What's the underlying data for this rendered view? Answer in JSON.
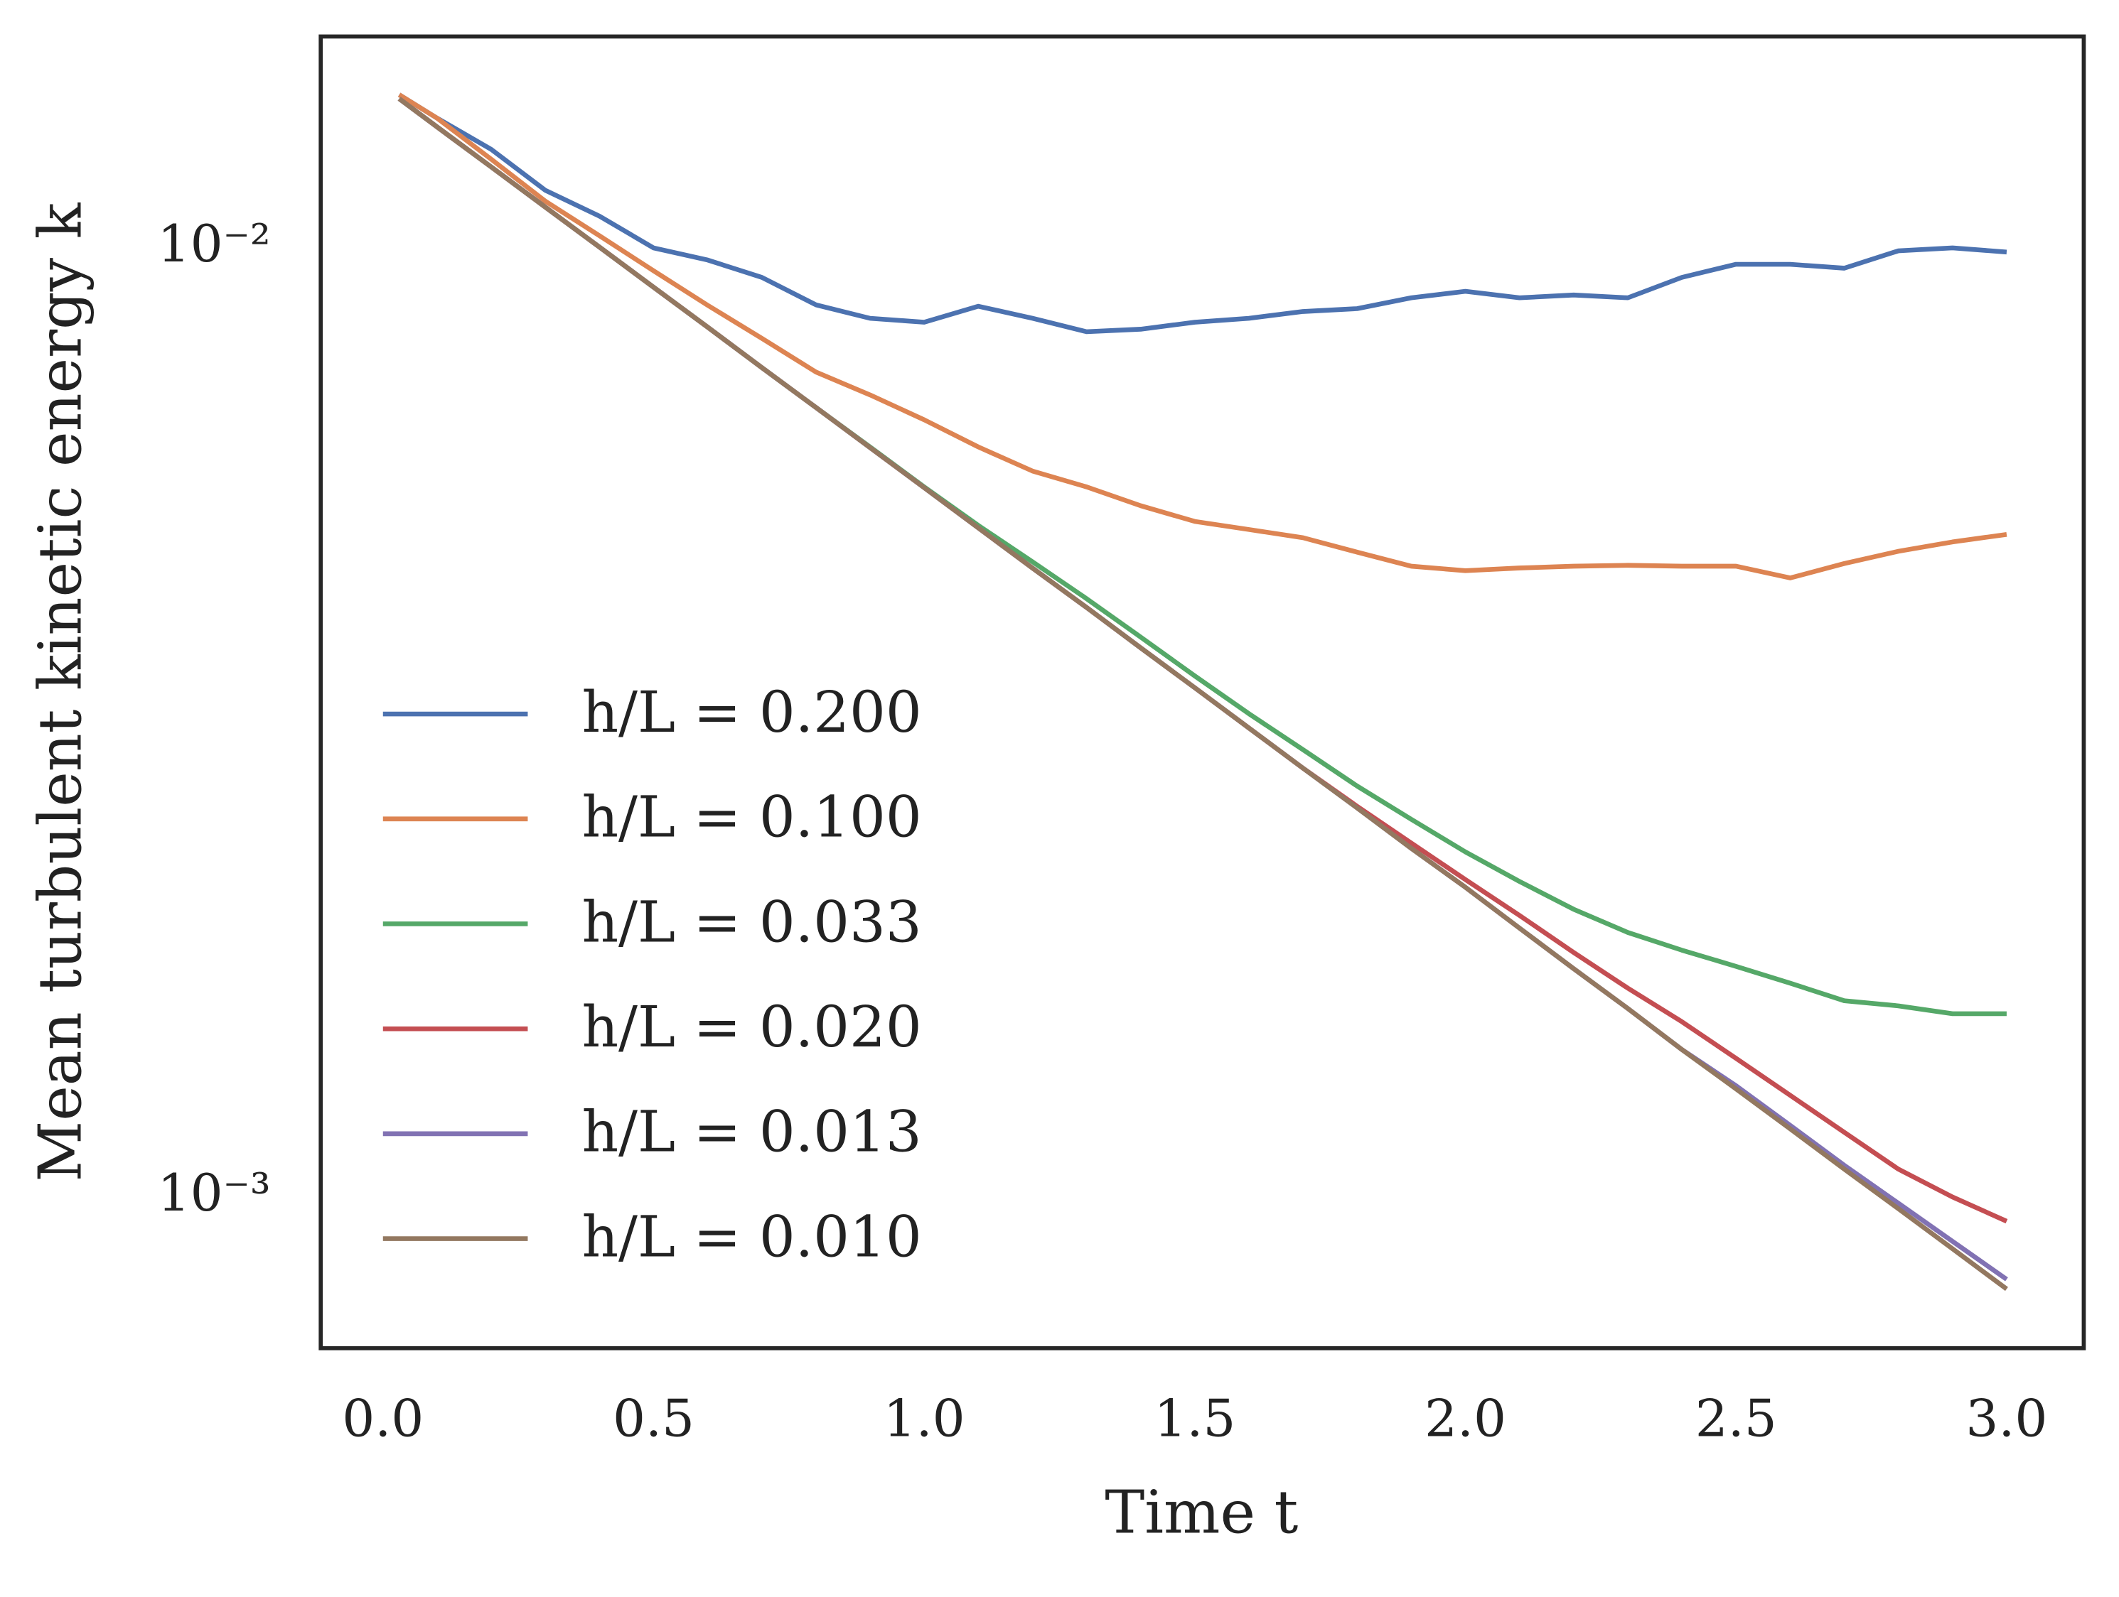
{
  "chart_data": {
    "type": "line",
    "xlabel": "Time t",
    "ylabel": "Mean turbulent kinetic energy k",
    "xlim": [
      -0.115,
      3.1425
    ],
    "ylim": [
      0.000693,
      0.0167
    ],
    "ylog": true,
    "grid": false,
    "legend": "lower left",
    "xticks": [
      {
        "value": 0,
        "label": "0.0"
      },
      0.5,
      {
        "value": 1,
        "label": "1.0"
      },
      1.5,
      {
        "value": 2,
        "label": "2.0"
      },
      2.5,
      {
        "value": 3,
        "label": "3.0"
      }
    ],
    "yticks": [
      {
        "value": 0.01,
        "label": "10⁻²"
      },
      {
        "value": 0.001,
        "label": "10⁻³"
      }
    ],
    "x": [
      0.03,
      0.1,
      0.2,
      0.3,
      0.4,
      0.5,
      0.6,
      0.7,
      0.8,
      0.9,
      1.0,
      1.1,
      1.2,
      1.3,
      1.4,
      1.5,
      1.6,
      1.7,
      1.8,
      1.9,
      2.0,
      2.1,
      2.2,
      2.3,
      2.4,
      2.5,
      2.6,
      2.7,
      2.8,
      2.9,
      3.0
    ],
    "series": [
      {
        "name": "h/L = 0.200",
        "color": "#4c72b0",
        "values": [
          0.0145,
          0.0137,
          0.0127,
          0.0115,
          0.0108,
          0.01,
          0.00971,
          0.00931,
          0.00871,
          0.00843,
          0.00835,
          0.00868,
          0.00843,
          0.00816,
          0.00821,
          0.00835,
          0.00843,
          0.00857,
          0.00863,
          0.00886,
          0.009,
          0.00886,
          0.00892,
          0.00886,
          0.00931,
          0.00961,
          0.00961,
          0.00952,
          0.00993,
          0.01,
          0.0099
        ]
      },
      {
        "name": "h/L = 0.100",
        "color": "#dd8452",
        "values": [
          0.0145,
          0.0137,
          0.0124,
          0.0112,
          0.0103,
          0.00946,
          0.0087,
          0.00803,
          0.0074,
          0.007,
          0.00659,
          0.00617,
          0.00582,
          0.0056,
          0.00535,
          0.00515,
          0.00505,
          0.00495,
          0.00478,
          0.00462,
          0.00457,
          0.0046,
          0.00462,
          0.00463,
          0.00462,
          0.00462,
          0.00449,
          0.00465,
          0.00479,
          0.0049,
          0.00499
        ]
      },
      {
        "name": "h/L = 0.033",
        "color": "#55a868",
        "values": [
          0.01436,
          0.01341,
          0.01217,
          0.01104,
          0.01002,
          0.00909,
          0.00825,
          0.00748,
          0.00679,
          0.00617,
          0.0056,
          0.0051,
          0.00467,
          0.00427,
          0.00389,
          0.00354,
          0.00323,
          0.00296,
          0.00271,
          0.0025,
          0.00231,
          0.00215,
          0.00201,
          0.0019,
          0.00182,
          0.00175,
          0.00168,
          0.00161,
          0.00159,
          0.00156,
          0.00156
        ]
      },
      {
        "name": "h/L = 0.020",
        "color": "#c44e52",
        "values": [
          0.01436,
          0.01341,
          0.01217,
          0.01104,
          0.01002,
          0.00909,
          0.00825,
          0.00748,
          0.00679,
          0.00616,
          0.00559,
          0.00507,
          0.0046,
          0.00418,
          0.00379,
          0.00344,
          0.00312,
          0.00283,
          0.00258,
          0.00236,
          0.00216,
          0.00198,
          0.00181,
          0.00166,
          0.00153,
          0.0014,
          0.00128,
          0.00117,
          0.00107,
          0.001,
          0.000943
        ]
      },
      {
        "name": "h/L = 0.013",
        "color": "#8172b3",
        "values": [
          0.01436,
          0.01341,
          0.01217,
          0.01104,
          0.01002,
          0.00909,
          0.00825,
          0.00748,
          0.00679,
          0.00616,
          0.00559,
          0.00507,
          0.0046,
          0.00418,
          0.00379,
          0.00344,
          0.00312,
          0.00283,
          0.00257,
          0.00233,
          0.00212,
          0.00192,
          0.00174,
          0.00158,
          0.00143,
          0.00131,
          0.00119,
          0.00108,
          0.000985,
          0.000898,
          0.000819
        ]
      },
      {
        "name": "h/L = 0.010",
        "color": "#937860",
        "values": [
          0.01436,
          0.01341,
          0.01217,
          0.01104,
          0.01002,
          0.00909,
          0.00825,
          0.00748,
          0.00679,
          0.00616,
          0.00559,
          0.00507,
          0.0046,
          0.00418,
          0.00379,
          0.00344,
          0.00312,
          0.00283,
          0.00257,
          0.00233,
          0.00212,
          0.00192,
          0.00174,
          0.00158,
          0.00143,
          0.0013,
          0.00118,
          0.00107,
          0.000972,
          0.000882,
          0.0008
        ]
      }
    ]
  }
}
